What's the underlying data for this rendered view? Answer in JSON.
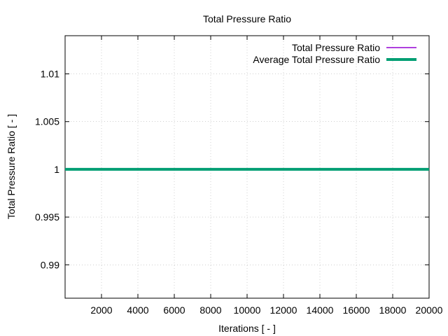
{
  "chart_data": {
    "type": "line",
    "title": "Total Pressure Ratio",
    "xlabel": "Iterations [ - ]",
    "ylabel": "Total Pressure Ratio [ - ]",
    "xlim": [
      0,
      20000
    ],
    "ylim": [
      0.9865,
      1.014
    ],
    "grid": true,
    "legend_position": "top-right",
    "x_ticks": [
      2000,
      4000,
      6000,
      8000,
      10000,
      12000,
      14000,
      16000,
      18000,
      20000
    ],
    "x_tick_labels": [
      "2000",
      "4000",
      "6000",
      "8000",
      "10000",
      "12000",
      "14000",
      "16000",
      "18000",
      "20000"
    ],
    "y_ticks": [
      0.99,
      0.995,
      1.0,
      1.005,
      1.01
    ],
    "y_tick_labels": [
      "0.99",
      "0.995",
      "1",
      "1.005",
      "1.01"
    ],
    "series": [
      {
        "name": "Total Pressure Ratio",
        "color": "#9400d3",
        "x": [
          0,
          2000,
          4000,
          6000,
          8000,
          10000,
          12000,
          14000,
          16000,
          18000,
          20000
        ],
        "values": [
          1.0,
          1.0,
          1.0,
          1.0,
          1.0,
          1.0,
          1.0,
          1.0,
          1.0,
          1.0,
          1.0
        ]
      },
      {
        "name": "Average Total Pressure Ratio",
        "color": "#009e73",
        "x": [
          0,
          2000,
          4000,
          6000,
          8000,
          10000,
          12000,
          14000,
          16000,
          18000,
          20000
        ],
        "values": [
          1.0,
          1.0,
          1.0,
          1.0,
          1.0,
          1.0,
          1.0,
          1.0,
          1.0,
          1.0,
          1.0
        ]
      }
    ]
  }
}
